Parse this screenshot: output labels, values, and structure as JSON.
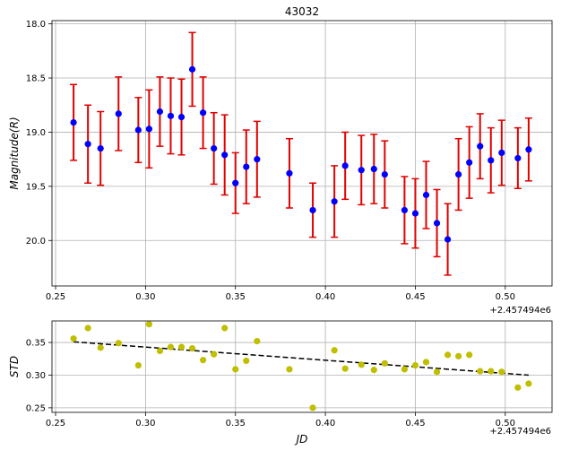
{
  "chart_data": [
    {
      "type": "scatter",
      "title": "43032",
      "xlabel": "",
      "ylabel": "Magnitude(R)",
      "x_offset_label": "+2.457494e6",
      "xlim": [
        0.248,
        0.526
      ],
      "ylim": [
        20.42,
        17.97
      ],
      "y_inverted": true,
      "grid": true,
      "x_ticks": [
        "0.25",
        "0.30",
        "0.35",
        "0.40",
        "0.45",
        "0.50"
      ],
      "y_ticks": [
        "18.0",
        "18.5",
        "19.0",
        "19.5",
        "20.0"
      ],
      "colors": {
        "points": "#0000ff",
        "errorbars": "#e00000",
        "grid": "#b0b0b0"
      },
      "series": [
        {
          "x": [
            0.26,
            0.268,
            0.275,
            0.285,
            0.296,
            0.302,
            0.308,
            0.314,
            0.32,
            0.326,
            0.332,
            0.338,
            0.344,
            0.35,
            0.356,
            0.362,
            0.38,
            0.393,
            0.405,
            0.411,
            0.42,
            0.427,
            0.433,
            0.444,
            0.45,
            0.456,
            0.462,
            0.468,
            0.474,
            0.48,
            0.486,
            0.492,
            0.498,
            0.507,
            0.513
          ],
          "y": [
            18.91,
            19.11,
            19.15,
            18.83,
            18.98,
            18.97,
            18.81,
            18.85,
            18.86,
            18.42,
            18.82,
            19.15,
            19.21,
            19.47,
            19.32,
            19.25,
            19.38,
            19.72,
            19.64,
            19.31,
            19.35,
            19.34,
            19.39,
            19.72,
            19.75,
            19.58,
            19.84,
            19.99,
            19.39,
            19.28,
            19.13,
            19.26,
            19.19,
            19.24,
            19.16
          ],
          "err": [
            0.35,
            0.36,
            0.34,
            0.34,
            0.3,
            0.36,
            0.32,
            0.35,
            0.35,
            0.34,
            0.33,
            0.33,
            0.37,
            0.28,
            0.34,
            0.35,
            0.32,
            0.25,
            0.33,
            0.31,
            0.32,
            0.32,
            0.31,
            0.31,
            0.32,
            0.31,
            0.31,
            0.33,
            0.33,
            0.33,
            0.3,
            0.3,
            0.3,
            0.28,
            0.29
          ]
        }
      ]
    },
    {
      "type": "scatter",
      "title": "",
      "xlabel": "JD",
      "ylabel": "STD",
      "x_offset_label": "+2.457494e6",
      "xlim": [
        0.248,
        0.526
      ],
      "ylim": [
        0.243,
        0.383
      ],
      "grid": true,
      "x_ticks": [
        "0.25",
        "0.30",
        "0.35",
        "0.40",
        "0.45",
        "0.50"
      ],
      "y_ticks": [
        "0.25",
        "0.30",
        "0.35"
      ],
      "colors": {
        "points": "#bfbf00",
        "fit": "#000000",
        "grid": "#b0b0b0"
      },
      "series": [
        {
          "x": [
            0.26,
            0.268,
            0.275,
            0.285,
            0.296,
            0.302,
            0.308,
            0.314,
            0.32,
            0.326,
            0.332,
            0.338,
            0.344,
            0.35,
            0.356,
            0.362,
            0.38,
            0.393,
            0.405,
            0.411,
            0.42,
            0.427,
            0.433,
            0.444,
            0.45,
            0.456,
            0.462,
            0.468,
            0.474,
            0.48,
            0.486,
            0.492,
            0.498,
            0.507,
            0.513
          ],
          "y": [
            0.356,
            0.372,
            0.342,
            0.349,
            0.315,
            0.378,
            0.337,
            0.343,
            0.343,
            0.341,
            0.323,
            0.332,
            0.372,
            0.309,
            0.322,
            0.352,
            0.309,
            0.25,
            0.338,
            0.31,
            0.316,
            0.308,
            0.318,
            0.309,
            0.315,
            0.32,
            0.305,
            0.331,
            0.329,
            0.331,
            0.306,
            0.306,
            0.305,
            0.281,
            0.287
          ]
        }
      ],
      "fit_line": {
        "x": [
          0.26,
          0.513
        ],
        "y": [
          0.351,
          0.3
        ]
      }
    }
  ]
}
